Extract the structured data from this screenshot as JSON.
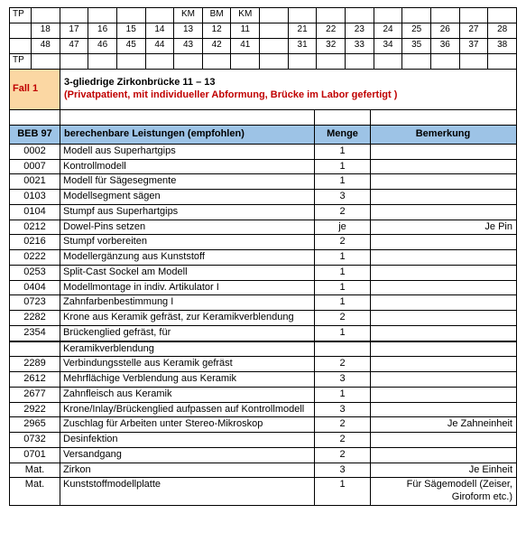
{
  "top_grid": {
    "label": "TP",
    "mid_labels": [
      "",
      "",
      "",
      "",
      "",
      "KM",
      "BM",
      "KM",
      "",
      "",
      "",
      "",
      "",
      "",
      "",
      "",
      ""
    ],
    "rows": [
      [
        "18",
        "17",
        "16",
        "15",
        "14",
        "13",
        "12",
        "11",
        "",
        "21",
        "22",
        "23",
        "24",
        "25",
        "26",
        "27",
        "28"
      ],
      [
        "48",
        "47",
        "46",
        "45",
        "44",
        "43",
        "42",
        "41",
        "",
        "31",
        "32",
        "33",
        "34",
        "35",
        "36",
        "37",
        "38"
      ]
    ]
  },
  "case": {
    "label": "Fall 1",
    "title": "3-gliedrige Zirkonbrücke 11 – 13",
    "subtitle": "(Privatpatient, mit individueller Abformung, Brücke im Labor gefertigt )"
  },
  "headers": {
    "code": "BEB 97",
    "desc": "berechenbare Leistungen (empfohlen)",
    "qty": "Menge",
    "note": "Bemerkung"
  },
  "rows": [
    {
      "code": "0002",
      "desc": "Modell aus Superhartgips",
      "qty": "1",
      "note": ""
    },
    {
      "code": "0007",
      "desc": "Kontrollmodell",
      "qty": "1",
      "note": ""
    },
    {
      "code": "0021",
      "desc": "Modell für Sägesegmente",
      "qty": "1",
      "note": ""
    },
    {
      "code": "0103",
      "desc": "Modellsegment sägen",
      "qty": "3",
      "note": ""
    },
    {
      "code": "0104",
      "desc": "Stumpf aus Superhartgips",
      "qty": "2",
      "note": ""
    },
    {
      "code": "0212",
      "desc": "Dowel-Pins setzen",
      "qty": "je",
      "note": "Je Pin"
    },
    {
      "code": "0216",
      "desc": "Stumpf vorbereiten",
      "qty": "2",
      "note": ""
    },
    {
      "code": "0222",
      "desc": "Modellergänzung aus Kunststoff",
      "qty": "1",
      "note": ""
    },
    {
      "code": "0253",
      "desc": "Split-Cast Sockel am Modell",
      "qty": "1",
      "note": ""
    },
    {
      "code": "0404",
      "desc": "Modellmontage in indiv. Artikulator I",
      "qty": "1",
      "note": ""
    },
    {
      "code": "0723",
      "desc": "Zahnfarbenbestimmung I",
      "qty": "1",
      "note": ""
    },
    {
      "code": "2282",
      "desc": "Krone aus Keramik gefräst, zur Keramikverblendung",
      "qty": "2",
      "note": ""
    },
    {
      "code": "2354",
      "desc": "Brückenglied gefräst, für",
      "qty": "1",
      "note": ""
    },
    {
      "code": "",
      "desc": "Keramikverblendung",
      "qty": "",
      "note": "",
      "heavyTop": true
    },
    {
      "code": "2289",
      "desc": "Verbindungsstelle aus Keramik gefräst",
      "qty": "2",
      "note": ""
    },
    {
      "code": "2612",
      "desc": "Mehrflächige Verblendung aus Keramik",
      "qty": "3",
      "note": ""
    },
    {
      "code": "2677",
      "desc": "Zahnfleisch aus Keramik",
      "qty": "1",
      "note": ""
    },
    {
      "code": "2922",
      "desc": "Krone/Inlay/Brückenglied aufpassen auf Kontrollmodell",
      "qty": "3",
      "note": ""
    },
    {
      "code": "2965",
      "desc": "Zuschlag für Arbeiten unter Stereo-Mikroskop",
      "qty": "2",
      "note": "Je Zahneinheit"
    },
    {
      "code": "0732",
      "desc": "Desinfektion",
      "qty": "2",
      "note": ""
    },
    {
      "code": "0701",
      "desc": "Versandgang",
      "qty": "2",
      "note": ""
    },
    {
      "code": "Mat.",
      "desc": "Zirkon",
      "qty": "3",
      "note": "Je Einheit"
    },
    {
      "code": "Mat.",
      "desc": "Kunststoffmodellplatte",
      "qty": "1",
      "note": "Für Sägemodell (Zeiser, Giroform etc.)"
    }
  ],
  "colors": {
    "case_bg": "#fbd7a3",
    "case_fg": "#c00000",
    "header_bg": "#9dc3e6"
  }
}
